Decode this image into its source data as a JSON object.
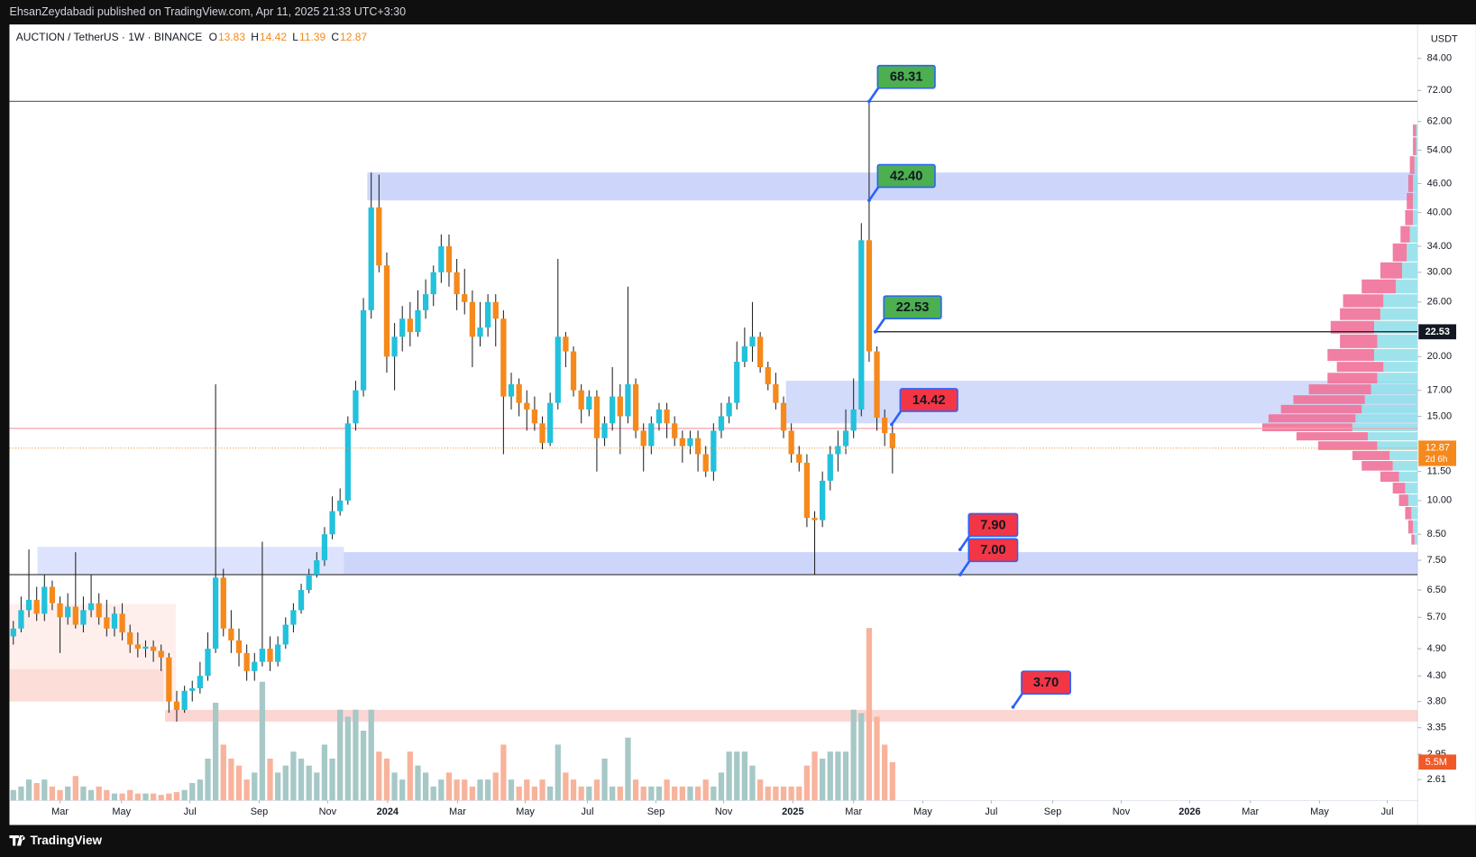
{
  "header": "EhsanZeydabadi published on TradingView.com, Apr 11, 2025 21:33 UTC+3:30",
  "brand": "TradingView",
  "chart_data": {
    "type": "candlestick",
    "symbol": "AUCTION / TetherUS · 1W · BINANCE",
    "ohlc_labels": [
      "O",
      "H",
      "L",
      "C"
    ],
    "currency": "USDT",
    "countdown": "2d 6h",
    "log_scale": true,
    "grid": false,
    "xlim": [
      0,
      181
    ],
    "ylim": [
      2.36,
      98.9
    ],
    "xticks": [
      {
        "value": 6.5,
        "label": "Mar"
      },
      {
        "value": 14.4,
        "label": "May"
      },
      {
        "value": 23.2,
        "label": "Jul"
      },
      {
        "value": 32.1,
        "label": "Sep"
      },
      {
        "value": 40.9,
        "label": "Nov"
      },
      {
        "value": 48.6,
        "label": "2024"
      },
      {
        "value": 57.6,
        "label": "Mar"
      },
      {
        "value": 66.3,
        "label": "May"
      },
      {
        "value": 74.3,
        "label": "Jul"
      },
      {
        "value": 83.1,
        "label": "Sep"
      },
      {
        "value": 91.8,
        "label": "Nov"
      },
      {
        "value": 100.7,
        "label": "2025"
      },
      {
        "value": 108.5,
        "label": "Mar"
      },
      {
        "value": 117.4,
        "label": "May"
      },
      {
        "value": 126.2,
        "label": "Jul"
      },
      {
        "value": 134.1,
        "label": "Sep"
      },
      {
        "value": 142.9,
        "label": "Nov"
      },
      {
        "value": 151.7,
        "label": "2026"
      },
      {
        "value": 159.5,
        "label": "Mar"
      },
      {
        "value": 168.4,
        "label": "May"
      },
      {
        "value": 177.1,
        "label": "Jul"
      }
    ],
    "yticks": [
      {
        "value": 84,
        "label": "84.00"
      },
      {
        "value": 72,
        "label": "72.00"
      },
      {
        "value": 62,
        "label": "62.00"
      },
      {
        "value": 54,
        "label": "54.00"
      },
      {
        "value": 46,
        "label": "46.00"
      },
      {
        "value": 40,
        "label": "40.00"
      },
      {
        "value": 34,
        "label": "34.00"
      },
      {
        "value": 30,
        "label": "30.00"
      },
      {
        "value": 26,
        "label": "26.00"
      },
      {
        "value": 20,
        "label": "20.00"
      },
      {
        "value": 17,
        "label": "17.00"
      },
      {
        "value": 15,
        "label": "15.00"
      },
      {
        "value": 11.5,
        "label": "11.50"
      },
      {
        "value": 10,
        "label": "10.00"
      },
      {
        "value": 8.5,
        "label": "8.50"
      },
      {
        "value": 7.5,
        "label": "7.50"
      },
      {
        "value": 6.5,
        "label": "6.50"
      },
      {
        "value": 5.7,
        "label": "5.70"
      },
      {
        "value": 4.9,
        "label": "4.90"
      },
      {
        "value": 4.3,
        "label": "4.30"
      },
      {
        "value": 3.8,
        "label": "3.80"
      },
      3.35,
      2.95,
      2.61
    ],
    "up_color": "#22c1dc",
    "down_color": "#f5891c",
    "volume_up_color": "#a6c8c6",
    "volume_down_color": "#f8b39c",
    "candles": [
      [
        5.2,
        5.6,
        5.0,
        5.4
      ],
      [
        5.4,
        6.3,
        5.3,
        5.9
      ],
      [
        5.9,
        7.9,
        5.7,
        6.2
      ],
      [
        6.2,
        6.6,
        5.6,
        5.8
      ],
      [
        5.8,
        7.0,
        5.6,
        6.6
      ],
      [
        6.6,
        6.8,
        5.9,
        6.1
      ],
      [
        6.1,
        6.3,
        4.8,
        5.7
      ],
      [
        5.7,
        6.4,
        5.5,
        6.0
      ],
      [
        6.0,
        7.8,
        5.4,
        5.5
      ],
      [
        5.5,
        6.3,
        5.3,
        5.9
      ],
      [
        5.9,
        7.0,
        5.7,
        6.1
      ],
      [
        6.1,
        6.4,
        5.5,
        5.7
      ],
      [
        5.7,
        6.2,
        5.2,
        5.4
      ],
      [
        5.4,
        6.0,
        5.2,
        5.8
      ],
      [
        5.8,
        6.1,
        5.1,
        5.3
      ],
      [
        5.3,
        5.5,
        4.8,
        5.0
      ],
      [
        5.0,
        5.3,
        4.7,
        4.9
      ],
      [
        4.9,
        5.1,
        4.7,
        4.95
      ],
      [
        4.95,
        5.1,
        4.6,
        4.85
      ],
      [
        4.85,
        5.0,
        4.4,
        4.7
      ],
      [
        4.7,
        4.8,
        3.6,
        3.8
      ],
      [
        3.8,
        4.0,
        3.45,
        3.65
      ],
      [
        3.65,
        4.1,
        3.6,
        4.0
      ],
      [
        4.0,
        4.2,
        3.8,
        4.05
      ],
      [
        4.05,
        4.6,
        3.95,
        4.3
      ],
      [
        4.3,
        5.3,
        4.2,
        4.9
      ],
      [
        4.9,
        17.5,
        4.8,
        6.9
      ],
      [
        6.9,
        7.2,
        5.2,
        5.4
      ],
      [
        5.4,
        5.9,
        4.8,
        5.1
      ],
      [
        5.1,
        5.4,
        4.5,
        4.8
      ],
      [
        4.8,
        5.0,
        4.2,
        4.4
      ],
      [
        4.4,
        4.8,
        4.2,
        4.6
      ],
      [
        4.6,
        8.2,
        4.5,
        4.9
      ],
      [
        4.9,
        5.2,
        4.4,
        4.6
      ],
      [
        4.6,
        5.2,
        4.5,
        5.0
      ],
      [
        5.0,
        5.7,
        4.9,
        5.5
      ],
      [
        5.5,
        6.1,
        5.3,
        5.9
      ],
      [
        5.9,
        6.7,
        5.8,
        6.5
      ],
      [
        6.5,
        7.2,
        6.4,
        7.0
      ],
      [
        7.0,
        7.8,
        6.9,
        7.5
      ],
      [
        7.5,
        8.8,
        7.3,
        8.5
      ],
      [
        8.5,
        10.2,
        8.3,
        9.5
      ],
      [
        9.5,
        10.6,
        9.3,
        10.0
      ],
      [
        10.0,
        15.0,
        9.8,
        14.5
      ],
      [
        14.5,
        17.8,
        14.0,
        17.0
      ],
      [
        17.0,
        26.5,
        16.5,
        25.0
      ],
      [
        25.0,
        48.5,
        24.0,
        41.0
      ],
      [
        41.0,
        48.0,
        30.0,
        31.0
      ],
      [
        31.0,
        33.0,
        18.5,
        20.0
      ],
      [
        20.0,
        23.5,
        17.0,
        22.0
      ],
      [
        22.0,
        25.5,
        20.5,
        24.0
      ],
      [
        24.0,
        26.0,
        21.0,
        22.5
      ],
      [
        22.5,
        27.5,
        22.0,
        25.0
      ],
      [
        25.0,
        29.0,
        24.0,
        27.0
      ],
      [
        27.0,
        31.0,
        25.5,
        30.0
      ],
      [
        30.0,
        36.0,
        28.5,
        34.0
      ],
      [
        34.0,
        36.0,
        28.0,
        30.0
      ],
      [
        30.0,
        32.0,
        25.0,
        27.0
      ],
      [
        27.0,
        30.5,
        24.5,
        26.0
      ],
      [
        26.0,
        27.5,
        19.0,
        22.0
      ],
      [
        22.0,
        26.0,
        21.0,
        23.0
      ],
      [
        23.0,
        27.0,
        22.0,
        26.0
      ],
      [
        26.0,
        27.0,
        21.0,
        24.0
      ],
      [
        24.0,
        25.0,
        12.5,
        16.5
      ],
      [
        16.5,
        18.5,
        15.5,
        17.5
      ],
      [
        17.5,
        18.0,
        15.0,
        16.0
      ],
      [
        16.0,
        17.0,
        14.0,
        15.5
      ],
      [
        15.5,
        16.5,
        14.0,
        14.5
      ],
      [
        14.5,
        15.0,
        12.8,
        13.2
      ],
      [
        13.2,
        16.8,
        13.0,
        16.0
      ],
      [
        16.0,
        32.0,
        15.5,
        22.0
      ],
      [
        22.0,
        22.5,
        19.0,
        20.5
      ],
      [
        20.5,
        21.0,
        16.5,
        17.0
      ],
      [
        17.0,
        17.5,
        14.5,
        15.5
      ],
      [
        15.5,
        17.0,
        15.0,
        16.5
      ],
      [
        16.5,
        17.0,
        11.5,
        13.5
      ],
      [
        13.5,
        15.0,
        13.0,
        14.5
      ],
      [
        14.5,
        19.0,
        14.0,
        16.5
      ],
      [
        16.5,
        17.5,
        12.5,
        15.0
      ],
      [
        15.0,
        28.0,
        14.5,
        17.5
      ],
      [
        17.5,
        18.0,
        13.5,
        14.0
      ],
      [
        14.0,
        14.5,
        11.5,
        13.0
      ],
      [
        13.0,
        15.0,
        12.5,
        14.5
      ],
      [
        14.5,
        16.0,
        14.0,
        15.5
      ],
      [
        15.5,
        16.0,
        13.5,
        14.5
      ],
      [
        14.5,
        15.0,
        13.0,
        13.5
      ],
      [
        13.5,
        14.0,
        12.0,
        13.0
      ],
      [
        13.0,
        14.0,
        12.5,
        13.5
      ],
      [
        13.5,
        14.0,
        11.5,
        12.5
      ],
      [
        12.5,
        13.0,
        11.2,
        11.5
      ],
      [
        11.5,
        14.5,
        11.0,
        14.0
      ],
      [
        14.0,
        16.0,
        13.5,
        15.0
      ],
      [
        15.0,
        16.5,
        14.5,
        16.0
      ],
      [
        16.0,
        21.5,
        15.5,
        19.5
      ],
      [
        19.5,
        23.0,
        19.0,
        21.0
      ],
      [
        21.0,
        26.0,
        19.5,
        22.0
      ],
      [
        22.0,
        22.5,
        18.5,
        19.0
      ],
      [
        19.0,
        19.5,
        17.0,
        17.5
      ],
      [
        17.5,
        18.5,
        15.5,
        16.0
      ],
      [
        16.0,
        16.5,
        13.5,
        14.0
      ],
      [
        14.0,
        14.5,
        12.0,
        12.5
      ],
      [
        12.5,
        13.0,
        11.5,
        12.0
      ],
      [
        12.0,
        12.5,
        8.8,
        9.2
      ],
      [
        9.2,
        9.5,
        7.0,
        9.1
      ],
      [
        9.1,
        11.5,
        8.8,
        11.0
      ],
      [
        11.0,
        13.0,
        10.5,
        12.5
      ],
      [
        12.5,
        14.0,
        11.5,
        13.0
      ],
      [
        13.0,
        15.5,
        12.5,
        14.0
      ],
      [
        14.0,
        18.0,
        13.5,
        15.5
      ],
      [
        15.5,
        38.0,
        15.0,
        35.0
      ],
      [
        35.0,
        68.31,
        19.5,
        20.5
      ],
      [
        20.5,
        21.0,
        14.0,
        14.9
      ],
      [
        14.9,
        15.5,
        13.0,
        13.83
      ],
      [
        13.83,
        14.42,
        11.39,
        12.87
      ]
    ],
    "volume": [
      1.5,
      2,
      3,
      2.5,
      3,
      2,
      1.5,
      2,
      3.5,
      2,
      1.5,
      2,
      1.5,
      1,
      1,
      1.5,
      1,
      1,
      1,
      0.8,
      1,
      1.2,
      1.5,
      2.5,
      3,
      6,
      14,
      8,
      6,
      5,
      3,
      4,
      17,
      6,
      4,
      5,
      7,
      6,
      5,
      4,
      8,
      6,
      13,
      12,
      13,
      10,
      13,
      7,
      6,
      4,
      3,
      7,
      5,
      4,
      2,
      3,
      4,
      3,
      3,
      2,
      3,
      3,
      4,
      8,
      3,
      2,
      3,
      2,
      3,
      2,
      8,
      4,
      3,
      2,
      2,
      3,
      6,
      2,
      2,
      9,
      3,
      2,
      2,
      2,
      3,
      2,
      2,
      2,
      2,
      3,
      2,
      4,
      7,
      7,
      7,
      5,
      3,
      2,
      2,
      2,
      2,
      2,
      5,
      7,
      6,
      7,
      7,
      7,
      13,
      12.5,
      24.7,
      12,
      8,
      5.5
    ],
    "volume_lim": [
      0,
      30
    ],
    "last_volume_label": "5.5M",
    "zones": [
      {
        "from": 42.4,
        "to": 48.5,
        "x0": 46,
        "x1": 181,
        "color": "rgba(98,126,240,0.32)"
      },
      {
        "from": 14.5,
        "to": 17.8,
        "x0": 99.8,
        "x1": 181,
        "color": "rgba(98,126,240,0.28)"
      },
      {
        "from": 7.0,
        "to": 8.0,
        "x0": 3.6,
        "x1": 43,
        "color": "rgba(98,126,240,0.22)"
      },
      {
        "from": 7.0,
        "to": 7.8,
        "x0": 43,
        "x1": 181,
        "color": "rgba(98,126,240,0.32)"
      },
      {
        "from": 3.45,
        "to": 3.65,
        "x0": 20,
        "x1": 181,
        "color": "rgba(245,120,110,0.3)"
      },
      {
        "from": 3.8,
        "to": 6.07,
        "x0": 0,
        "x1": 21.4,
        "color": "rgba(245,140,120,0.14)"
      },
      {
        "from": 3.8,
        "to": 4.44,
        "x0": 0,
        "x1": 19.8,
        "color": "rgba(245,140,120,0.18)"
      }
    ],
    "lines": [
      {
        "price": 68.31,
        "x0": 0,
        "x1": 181,
        "color": "#6b6b6b"
      },
      {
        "price": 22.53,
        "x0": 111.3,
        "x1": 181,
        "color": "#131722"
      },
      {
        "price": 14.15,
        "x0": 0,
        "x1": 181,
        "color": "#f7a1ad"
      },
      {
        "price": 7.0,
        "x0": 0,
        "x1": 181,
        "color": "#444444"
      }
    ],
    "callouts": [
      {
        "value": 68.31,
        "x": 110.5,
        "color": "#4caf50"
      },
      {
        "value": 42.4,
        "label": "42.40",
        "x": 110.5,
        "color": "#4caf50"
      },
      {
        "value": 22.53,
        "x": 111.3,
        "color": "#4caf50"
      },
      {
        "value": 14.42,
        "x": 113.4,
        "color": "#f23645"
      },
      {
        "value": 7.9,
        "label": "7.90",
        "x": 122.2,
        "color": "#f23645"
      },
      {
        "value": 7.0,
        "label": "7.00",
        "x": 122.2,
        "color": "#f23645"
      },
      {
        "value": 3.7,
        "label": "3.70",
        "x": 129.0,
        "color": "#f23645"
      }
    ],
    "volume_profile": {
      "prices": [
        60,
        55,
        50,
        46,
        42,
        39,
        36,
        33,
        30,
        28,
        26,
        24.5,
        23,
        21.5,
        20,
        19,
        18,
        17,
        16.2,
        15.5,
        14.8,
        14.2,
        13.6,
        13,
        12.4,
        11.8,
        11.2,
        10.6,
        10,
        9.4,
        8.8,
        8.2
      ],
      "up": [
        1,
        1,
        2,
        3,
        3,
        3,
        5,
        7,
        10,
        14,
        22,
        24,
        28,
        26,
        28,
        22,
        26,
        30,
        34,
        36,
        40,
        42,
        32,
        26,
        18,
        16,
        12,
        8,
        6,
        4,
        3,
        2
      ],
      "down": [
        2,
        2,
        3,
        3,
        4,
        5,
        6,
        9,
        14,
        22,
        26,
        26,
        28,
        24,
        30,
        30,
        32,
        40,
        46,
        52,
        56,
        58,
        46,
        38,
        24,
        20,
        12,
        8,
        6,
        4,
        3,
        2
      ],
      "up_color": "#93e0ea",
      "down_color": "#ef7199"
    }
  }
}
